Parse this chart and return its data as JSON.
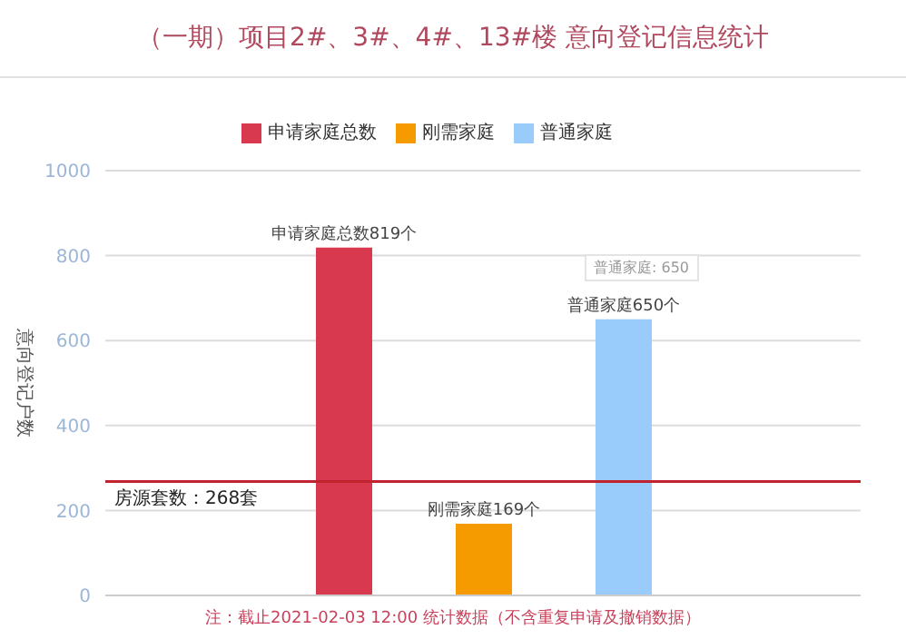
{
  "chart_data": {
    "type": "bar",
    "title": "（一期）项目2#、3#、4#、13#楼 意向登记信息统计",
    "ylabel": "意向登记户数",
    "categories": [
      null
    ],
    "series": [
      {
        "name": "申请家庭总数",
        "color": "#d9394f",
        "values": [
          819
        ],
        "value_labels": [
          "申请家庭总数819个"
        ]
      },
      {
        "name": "刚需家庭",
        "color": "#f59b00",
        "values": [
          169
        ],
        "value_labels": [
          "刚需家庭169个"
        ]
      },
      {
        "name": "普通家庭",
        "color": "#99ccfa",
        "values": [
          650
        ],
        "value_labels": [
          "普通家庭650个"
        ]
      }
    ],
    "ylim": [
      0,
      1000
    ],
    "yticks": [
      0,
      200,
      400,
      600,
      800,
      1000
    ],
    "grid": "y",
    "legend": "top",
    "ref_lines": [
      {
        "axis": "y",
        "value": 268,
        "label": "房源套数：268套",
        "color": "#c0232e"
      }
    ],
    "annotations": [
      "注：截止2021-02-03 12:00 统计数据（不含重复申请及撤销数据）",
      "普通家庭: 650"
    ]
  }
}
